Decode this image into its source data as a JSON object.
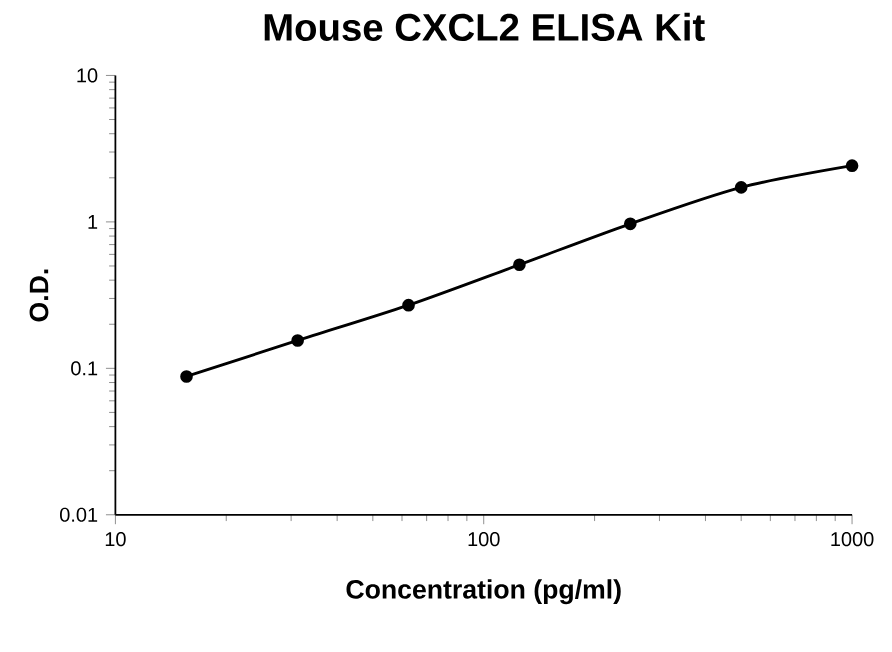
{
  "chart_data": {
    "type": "line",
    "title": "Mouse CXCL2 ELISA Kit",
    "xlabel": "Concentration (pg/ml)",
    "ylabel": "O.D.",
    "x": [
      15.6,
      31.25,
      62.5,
      125,
      250,
      500,
      1000
    ],
    "series": [
      {
        "color": "#000000",
        "values": [
          0.088,
          0.155,
          0.27,
          0.51,
          0.97,
          1.72,
          2.42
        ]
      }
    ],
    "log": "xy",
    "xlim": [
      10,
      1000
    ],
    "ylim": [
      0.01,
      10
    ],
    "xticks": [
      10,
      100,
      1000
    ],
    "yticks": [
      0.01,
      0.1,
      1,
      10
    ],
    "marker": "circle",
    "line_style": "solid"
  }
}
